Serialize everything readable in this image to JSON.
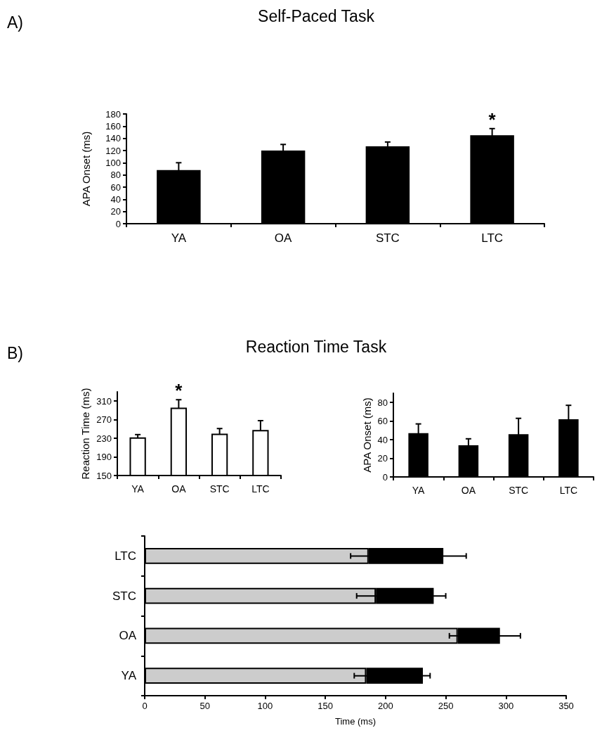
{
  "chart_data": [
    {
      "type": "bar",
      "title": "Self-Paced Task",
      "ylabel": "APA Onset (ms)",
      "categories": [
        "YA",
        "OA",
        "STC",
        "LTC"
      ],
      "values": [
        88,
        120,
        127,
        145
      ],
      "errors": [
        12,
        10,
        7,
        11
      ],
      "color": "#000000",
      "ylim": [
        0,
        180
      ],
      "yticks": [
        0,
        20,
        40,
        60,
        80,
        100,
        120,
        140,
        160,
        180
      ],
      "grid": false,
      "annotations": [
        "A)",
        {
          "text": "*",
          "x": "LTC",
          "y": 156
        }
      ]
    },
    {
      "type": "bar",
      "title": "Reaction Time Task",
      "ylabel": "Reaction Time (ms)",
      "categories": [
        "YA",
        "OA",
        "STC",
        "LTC"
      ],
      "values": [
        232,
        296,
        240,
        248
      ],
      "errors": [
        6,
        17,
        11,
        20
      ],
      "color": "#ffffff",
      "ylim": [
        150,
        330
      ],
      "yticks": [
        150,
        190,
        230,
        270,
        310
      ],
      "grid": false,
      "annotations": [
        "B)",
        {
          "text": "*",
          "x": "OA",
          "y": 313
        }
      ]
    },
    {
      "type": "bar",
      "ylabel": "APA Onset (ms)",
      "categories": [
        "YA",
        "OA",
        "STC",
        "LTC"
      ],
      "values": [
        47,
        34,
        46,
        62
      ],
      "errors": [
        10,
        7,
        17,
        15
      ],
      "color": "#000000",
      "ylim": [
        0,
        90
      ],
      "yticks": [
        0,
        20,
        40,
        60,
        80
      ],
      "grid": false
    },
    {
      "type": "bar",
      "orientation": "horizontal",
      "stacked": true,
      "xlabel": "Time (ms)",
      "categories": [
        "LTC",
        "STC",
        "OA",
        "YA"
      ],
      "xlim": [
        0,
        350
      ],
      "xticks": [
        0,
        50,
        100,
        150,
        200,
        250,
        300,
        350
      ],
      "grid": false,
      "series": [
        {
          "color": "#cccccc",
          "values": [
            186,
            192,
            260,
            184
          ],
          "errors": [
            15,
            16,
            7,
            10
          ]
        },
        {
          "color": "#000000",
          "values": [
            62,
            48,
            35,
            47
          ],
          "errors": [
            19,
            10,
            17,
            6
          ]
        }
      ]
    }
  ]
}
